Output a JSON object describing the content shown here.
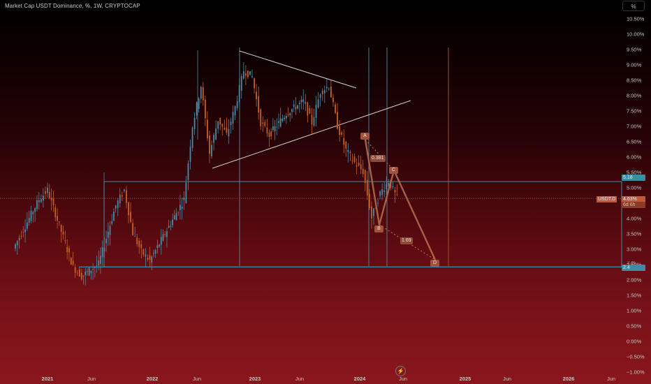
{
  "header": {
    "title": "Market Cap USDT Dominance, %, 1W, CRYPTOCAP",
    "unit_button": "%"
  },
  "colors": {
    "up": "#4c8aa6",
    "down": "#c75f2a",
    "horizontal_line": "#3f8fa8",
    "vertical_line": "#4a7f95",
    "trendline": "#cfcfcf",
    "projection": "#b46a4a",
    "price_badge": "#c0583a"
  },
  "y_axis": {
    "ticks": [
      "10.50%",
      "10.00%",
      "9.50%",
      "9.00%",
      "8.50%",
      "8.00%",
      "7.50%",
      "7.00%",
      "6.50%",
      "6.00%",
      "5.50%",
      "5.00%",
      "4.50%",
      "4.00%",
      "3.50%",
      "3.00%",
      "2.50%",
      "2.00%",
      "1.50%",
      "1.00%",
      "0.50%",
      "0.00%",
      "−0.50%",
      "−1.00%"
    ]
  },
  "x_axis": {
    "ticks": [
      {
        "label": "2021",
        "bold": true
      },
      {
        "label": "Jun",
        "bold": false
      },
      {
        "label": "2022",
        "bold": true
      },
      {
        "label": "Jun",
        "bold": false
      },
      {
        "label": "2023",
        "bold": true
      },
      {
        "label": "Jun",
        "bold": false
      },
      {
        "label": "2024",
        "bold": true
      },
      {
        "label": "Jun",
        "bold": false
      },
      {
        "label": "2025",
        "bold": true
      },
      {
        "label": "Jun",
        "bold": false
      },
      {
        "label": "2026",
        "bold": true
      },
      {
        "label": "Jun",
        "bold": false
      }
    ]
  },
  "badges": {
    "upper_level": "5.18",
    "lower_level": "2.4",
    "symbol": "USDT.D",
    "price": "4.63%",
    "countdown": "6d 6h",
    "partial_label": "2.46"
  },
  "abcd_pattern": {
    "points": [
      "A",
      "B",
      "C",
      "D"
    ],
    "ratio_ab": "0.381",
    "ratio_cd": "1.69"
  },
  "footer": {
    "bolt_icon": "⚡"
  },
  "chart_data": {
    "type": "candlestick",
    "title": "Market Cap USDT Dominance, %, 1W, CRYPTOCAP",
    "ylabel": "%",
    "ylim": [
      -1.0,
      10.75
    ],
    "x_range": [
      "2020-09",
      "2026-08"
    ],
    "current_value": 4.63,
    "horizontal_levels": [
      5.18,
      2.4
    ],
    "key_points": [
      {
        "date": "2020-09",
        "value": 3.0
      },
      {
        "date": "2020-12",
        "value": 4.6
      },
      {
        "date": "2021-01",
        "value": 4.9
      },
      {
        "date": "2021-04",
        "value": 2.4
      },
      {
        "date": "2021-05",
        "value": 2.1
      },
      {
        "date": "2021-07",
        "value": 2.5
      },
      {
        "date": "2021-09",
        "value": 4.4
      },
      {
        "date": "2021-10",
        "value": 4.9
      },
      {
        "date": "2021-11",
        "value": 3.5
      },
      {
        "date": "2021-12",
        "value": 2.9
      },
      {
        "date": "2022-01",
        "value": 2.6
      },
      {
        "date": "2022-03",
        "value": 3.6
      },
      {
        "date": "2022-05",
        "value": 4.6
      },
      {
        "date": "2022-06",
        "value": 7.0
      },
      {
        "date": "2022-07",
        "value": 8.3
      },
      {
        "date": "2022-08",
        "value": 6.1
      },
      {
        "date": "2022-09",
        "value": 7.2
      },
      {
        "date": "2022-10",
        "value": 6.7
      },
      {
        "date": "2022-11",
        "value": 7.6
      },
      {
        "date": "2022-12",
        "value": 8.8
      },
      {
        "date": "2023-01",
        "value": 8.6
      },
      {
        "date": "2023-02",
        "value": 7.1
      },
      {
        "date": "2023-03",
        "value": 6.7
      },
      {
        "date": "2023-05",
        "value": 7.4
      },
      {
        "date": "2023-07",
        "value": 7.8
      },
      {
        "date": "2023-08",
        "value": 7.1
      },
      {
        "date": "2023-09",
        "value": 8.1
      },
      {
        "date": "2023-10",
        "value": 8.3
      },
      {
        "date": "2023-11",
        "value": 7.0
      },
      {
        "date": "2023-12",
        "value": 6.2
      },
      {
        "date": "2024-01",
        "value": 5.8
      },
      {
        "date": "2024-02",
        "value": 5.5
      },
      {
        "date": "2024-03",
        "value": 4.0
      },
      {
        "date": "2024-04",
        "value": 4.8
      },
      {
        "date": "2024-05",
        "value": 5.2
      },
      {
        "date": "2024-06",
        "value": 4.63
      }
    ]
  }
}
